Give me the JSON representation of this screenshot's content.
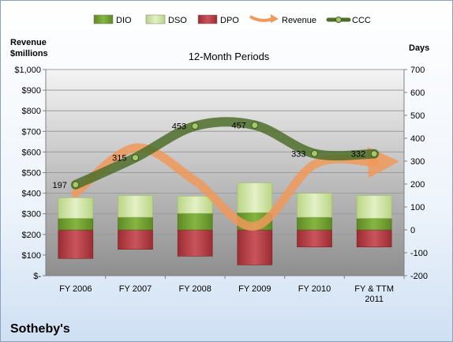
{
  "chart_data": {
    "type": "bar",
    "title": "12-Month Periods",
    "company": "Sotheby's",
    "ylabel_left": "Revenue $millions",
    "ylabel_right": "Days",
    "ylim_left": [
      0,
      1000
    ],
    "ylim_right": [
      -200,
      700
    ],
    "left_ticks": [
      "$-",
      "$100",
      "$200",
      "$300",
      "$400",
      "$500",
      "$600",
      "$700",
      "$800",
      "$900",
      "$1,000"
    ],
    "right_ticks": [
      "-200",
      "-100",
      "0",
      "100",
      "200",
      "300",
      "400",
      "500",
      "600",
      "700"
    ],
    "categories": [
      "FY 2006",
      "FY 2007",
      "FY 2008",
      "FY 2009",
      "FY 2010",
      "FY & TTM 2011"
    ],
    "legend": [
      "DIO",
      "DSO",
      "DPO",
      "Revenue",
      "CCC"
    ],
    "colors": {
      "DIO": "#6e9a2e",
      "DSO": "#cfe3a1",
      "DPO": "#b5383f",
      "Revenue": "#f0995a",
      "CCC": "#4d6e2a"
    },
    "series": [
      {
        "name": "DIO",
        "axis": "right",
        "values": [
          50,
          55,
          72,
          75,
          55,
          50
        ]
      },
      {
        "name": "DSO",
        "axis": "right",
        "values": [
          90,
          95,
          75,
          130,
          105,
          100
        ]
      },
      {
        "name": "DPO",
        "axis": "right",
        "values": [
          -125,
          -85,
          -115,
          -153,
          -75,
          -75
        ]
      },
      {
        "name": "Revenue",
        "axis": "left",
        "values": [
          400,
          620,
          460,
          240,
          540,
          550
        ]
      },
      {
        "name": "CCC",
        "axis": "right",
        "values": [
          197,
          315,
          453,
          457,
          333,
          332
        ]
      }
    ],
    "ccc_labels": [
      "197",
      "315",
      "453",
      "457",
      "333",
      "332"
    ],
    "grid": true,
    "legend_position": "top"
  }
}
